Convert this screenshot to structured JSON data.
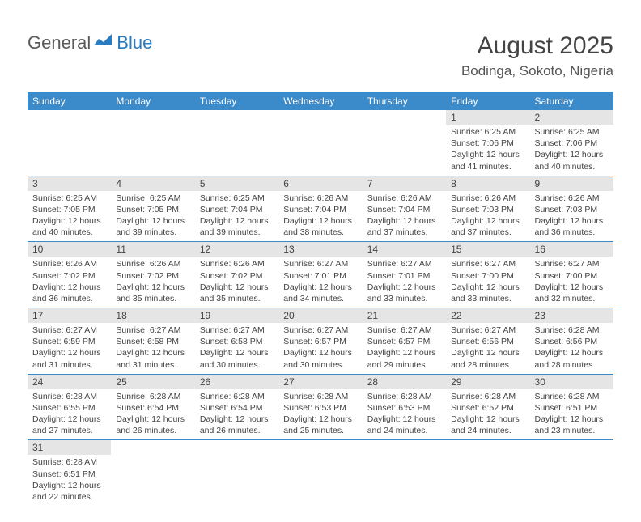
{
  "logo": {
    "part1": "General",
    "part2": "Blue"
  },
  "title": "August 2025",
  "location": "Bodinga, Sokoto, Nigeria",
  "day_headers": [
    "Sunday",
    "Monday",
    "Tuesday",
    "Wednesday",
    "Thursday",
    "Friday",
    "Saturday"
  ],
  "colors": {
    "header_bg": "#3b8aca",
    "header_text": "#ffffff",
    "daynum_bg": "#e5e5e5",
    "border": "#3b8aca",
    "text": "#444444"
  },
  "weeks": [
    [
      null,
      null,
      null,
      null,
      null,
      {
        "n": "1",
        "sr": "6:25 AM",
        "ss": "7:06 PM",
        "dh": "12",
        "dm": "41"
      },
      {
        "n": "2",
        "sr": "6:25 AM",
        "ss": "7:06 PM",
        "dh": "12",
        "dm": "40"
      }
    ],
    [
      {
        "n": "3",
        "sr": "6:25 AM",
        "ss": "7:05 PM",
        "dh": "12",
        "dm": "40"
      },
      {
        "n": "4",
        "sr": "6:25 AM",
        "ss": "7:05 PM",
        "dh": "12",
        "dm": "39"
      },
      {
        "n": "5",
        "sr": "6:25 AM",
        "ss": "7:04 PM",
        "dh": "12",
        "dm": "39"
      },
      {
        "n": "6",
        "sr": "6:26 AM",
        "ss": "7:04 PM",
        "dh": "12",
        "dm": "38"
      },
      {
        "n": "7",
        "sr": "6:26 AM",
        "ss": "7:04 PM",
        "dh": "12",
        "dm": "37"
      },
      {
        "n": "8",
        "sr": "6:26 AM",
        "ss": "7:03 PM",
        "dh": "12",
        "dm": "37"
      },
      {
        "n": "9",
        "sr": "6:26 AM",
        "ss": "7:03 PM",
        "dh": "12",
        "dm": "36"
      }
    ],
    [
      {
        "n": "10",
        "sr": "6:26 AM",
        "ss": "7:02 PM",
        "dh": "12",
        "dm": "36"
      },
      {
        "n": "11",
        "sr": "6:26 AM",
        "ss": "7:02 PM",
        "dh": "12",
        "dm": "35"
      },
      {
        "n": "12",
        "sr": "6:26 AM",
        "ss": "7:02 PM",
        "dh": "12",
        "dm": "35"
      },
      {
        "n": "13",
        "sr": "6:27 AM",
        "ss": "7:01 PM",
        "dh": "12",
        "dm": "34"
      },
      {
        "n": "14",
        "sr": "6:27 AM",
        "ss": "7:01 PM",
        "dh": "12",
        "dm": "33"
      },
      {
        "n": "15",
        "sr": "6:27 AM",
        "ss": "7:00 PM",
        "dh": "12",
        "dm": "33"
      },
      {
        "n": "16",
        "sr": "6:27 AM",
        "ss": "7:00 PM",
        "dh": "12",
        "dm": "32"
      }
    ],
    [
      {
        "n": "17",
        "sr": "6:27 AM",
        "ss": "6:59 PM",
        "dh": "12",
        "dm": "31"
      },
      {
        "n": "18",
        "sr": "6:27 AM",
        "ss": "6:58 PM",
        "dh": "12",
        "dm": "31"
      },
      {
        "n": "19",
        "sr": "6:27 AM",
        "ss": "6:58 PM",
        "dh": "12",
        "dm": "30"
      },
      {
        "n": "20",
        "sr": "6:27 AM",
        "ss": "6:57 PM",
        "dh": "12",
        "dm": "30"
      },
      {
        "n": "21",
        "sr": "6:27 AM",
        "ss": "6:57 PM",
        "dh": "12",
        "dm": "29"
      },
      {
        "n": "22",
        "sr": "6:27 AM",
        "ss": "6:56 PM",
        "dh": "12",
        "dm": "28"
      },
      {
        "n": "23",
        "sr": "6:28 AM",
        "ss": "6:56 PM",
        "dh": "12",
        "dm": "28"
      }
    ],
    [
      {
        "n": "24",
        "sr": "6:28 AM",
        "ss": "6:55 PM",
        "dh": "12",
        "dm": "27"
      },
      {
        "n": "25",
        "sr": "6:28 AM",
        "ss": "6:54 PM",
        "dh": "12",
        "dm": "26"
      },
      {
        "n": "26",
        "sr": "6:28 AM",
        "ss": "6:54 PM",
        "dh": "12",
        "dm": "26"
      },
      {
        "n": "27",
        "sr": "6:28 AM",
        "ss": "6:53 PM",
        "dh": "12",
        "dm": "25"
      },
      {
        "n": "28",
        "sr": "6:28 AM",
        "ss": "6:53 PM",
        "dh": "12",
        "dm": "24"
      },
      {
        "n": "29",
        "sr": "6:28 AM",
        "ss": "6:52 PM",
        "dh": "12",
        "dm": "24"
      },
      {
        "n": "30",
        "sr": "6:28 AM",
        "ss": "6:51 PM",
        "dh": "12",
        "dm": "23"
      }
    ],
    [
      {
        "n": "31",
        "sr": "6:28 AM",
        "ss": "6:51 PM",
        "dh": "12",
        "dm": "22"
      },
      null,
      null,
      null,
      null,
      null,
      null
    ]
  ],
  "labels": {
    "sunrise": "Sunrise:",
    "sunset": "Sunset:",
    "daylight": "Daylight:",
    "hours": "hours",
    "and": "and",
    "minutes": "minutes."
  }
}
